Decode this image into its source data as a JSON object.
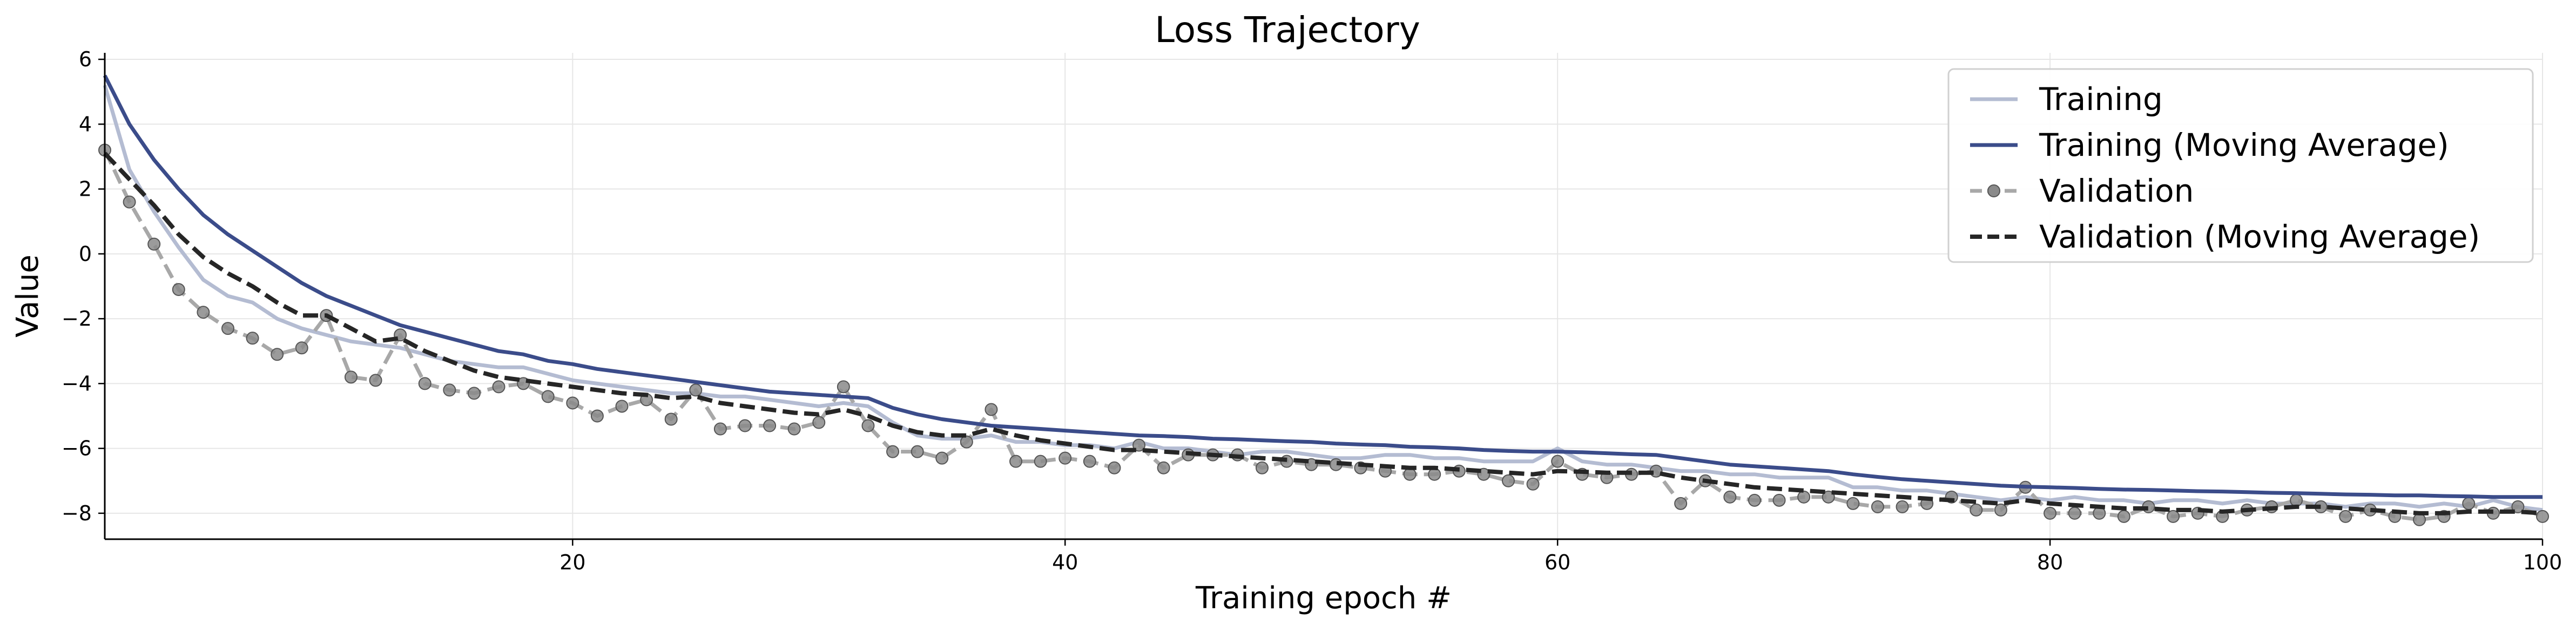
{
  "chart_data": {
    "type": "line",
    "title": "Loss Trajectory",
    "xlabel": "Training epoch #",
    "ylabel": "Value",
    "xlim": [
      1,
      100
    ],
    "ylim": [
      -8.8,
      6.2
    ],
    "xticks": [
      20,
      40,
      60,
      80,
      100
    ],
    "yticks": [
      -8,
      -6,
      -4,
      -2,
      0,
      2,
      4,
      6
    ],
    "grid": true,
    "legend_position": "top-right",
    "series": [
      {
        "name": "Training",
        "color": "#b4bcd2",
        "style": "solid",
        "x_start": 1,
        "values": [
          5.2,
          2.6,
          1.3,
          0.2,
          -0.8,
          -1.3,
          -1.5,
          -2.0,
          -2.3,
          -2.5,
          -2.7,
          -2.8,
          -2.9,
          -3.1,
          -3.3,
          -3.4,
          -3.5,
          -3.5,
          -3.7,
          -3.9,
          -4.0,
          -4.1,
          -4.2,
          -4.3,
          -4.3,
          -4.4,
          -4.4,
          -4.5,
          -4.6,
          -4.7,
          -4.6,
          -4.7,
          -5.2,
          -5.6,
          -5.7,
          -5.7,
          -5.6,
          -5.8,
          -5.8,
          -5.9,
          -5.9,
          -6.0,
          -5.8,
          -6.0,
          -6.0,
          -6.1,
          -6.2,
          -6.1,
          -6.1,
          -6.2,
          -6.3,
          -6.3,
          -6.2,
          -6.2,
          -6.3,
          -6.3,
          -6.4,
          -6.4,
          -6.4,
          -6.0,
          -6.4,
          -6.5,
          -6.5,
          -6.6,
          -6.7,
          -6.7,
          -6.8,
          -6.8,
          -6.9,
          -6.9,
          -6.9,
          -7.2,
          -7.2,
          -7.3,
          -7.3,
          -7.4,
          -7.5,
          -7.6,
          -7.5,
          -7.6,
          -7.5,
          -7.6,
          -7.6,
          -7.7,
          -7.6,
          -7.6,
          -7.7,
          -7.6,
          -7.7,
          -7.7,
          -7.7,
          -7.8,
          -7.7,
          -7.7,
          -7.8,
          -7.7,
          -7.8,
          -7.6,
          -7.8,
          -7.9
        ]
      },
      {
        "name": "Training (Moving Average)",
        "color": "#3b4c8a",
        "style": "solid",
        "x_start": 1,
        "values": [
          5.5,
          4.0,
          2.9,
          2.0,
          1.2,
          0.6,
          0.1,
          -0.4,
          -0.9,
          -1.3,
          -1.6,
          -1.9,
          -2.2,
          -2.4,
          -2.6,
          -2.8,
          -3.0,
          -3.1,
          -3.3,
          -3.4,
          -3.55,
          -3.65,
          -3.75,
          -3.85,
          -3.95,
          -4.05,
          -4.15,
          -4.25,
          -4.3,
          -4.35,
          -4.4,
          -4.45,
          -4.75,
          -4.95,
          -5.1,
          -5.2,
          -5.3,
          -5.35,
          -5.4,
          -5.45,
          -5.5,
          -5.55,
          -5.6,
          -5.62,
          -5.65,
          -5.7,
          -5.72,
          -5.75,
          -5.78,
          -5.8,
          -5.85,
          -5.88,
          -5.9,
          -5.95,
          -5.97,
          -6.0,
          -6.05,
          -6.08,
          -6.1,
          -6.1,
          -6.12,
          -6.15,
          -6.18,
          -6.2,
          -6.3,
          -6.4,
          -6.5,
          -6.55,
          -6.6,
          -6.65,
          -6.7,
          -6.8,
          -6.88,
          -6.95,
          -7.0,
          -7.05,
          -7.1,
          -7.15,
          -7.18,
          -7.2,
          -7.22,
          -7.25,
          -7.27,
          -7.28,
          -7.3,
          -7.32,
          -7.33,
          -7.35,
          -7.37,
          -7.38,
          -7.4,
          -7.42,
          -7.43,
          -7.45,
          -7.45,
          -7.47,
          -7.48,
          -7.5,
          -7.5,
          -7.5
        ]
      },
      {
        "name": "Validation",
        "color": "#a8a8a8",
        "marker_color": "#8a8a8a",
        "style": "dashed-markers",
        "x_start": 1,
        "values": [
          3.2,
          1.6,
          0.3,
          -1.1,
          -1.8,
          -2.3,
          -2.6,
          -3.1,
          -2.9,
          -1.9,
          -3.8,
          -3.9,
          -2.5,
          -4.0,
          -4.2,
          -4.3,
          -4.1,
          -4.0,
          -4.4,
          -4.6,
          -5.0,
          -4.7,
          -4.5,
          -5.1,
          -4.2,
          -5.4,
          -5.3,
          -5.3,
          -5.4,
          -5.2,
          -4.1,
          -5.3,
          -6.1,
          -6.1,
          -6.3,
          -5.8,
          -4.8,
          -6.4,
          -6.4,
          -6.3,
          -6.4,
          -6.6,
          -5.9,
          -6.6,
          -6.2,
          -6.2,
          -6.2,
          -6.6,
          -6.4,
          -6.5,
          -6.5,
          -6.6,
          -6.7,
          -6.8,
          -6.8,
          -6.7,
          -6.8,
          -7.0,
          -7.1,
          -6.4,
          -6.8,
          -6.9,
          -6.8,
          -6.7,
          -7.7,
          -7.0,
          -7.5,
          -7.6,
          -7.6,
          -7.5,
          -7.5,
          -7.7,
          -7.8,
          -7.8,
          -7.7,
          -7.5,
          -7.9,
          -7.9,
          -7.2,
          -8.0,
          -8.0,
          -8.0,
          -8.1,
          -7.8,
          -8.1,
          -8.0,
          -8.1,
          -7.9,
          -7.8,
          -7.6,
          -7.8,
          -8.1,
          -7.9,
          -8.1,
          -8.2,
          -8.1,
          -7.7,
          -8.0,
          -7.8,
          -8.1
        ]
      },
      {
        "name": "Validation (Moving Average)",
        "color": "#262626",
        "style": "dashed",
        "x_start": 1,
        "values": [
          3.1,
          2.3,
          1.5,
          0.6,
          -0.1,
          -0.6,
          -1.0,
          -1.5,
          -1.9,
          -1.9,
          -2.3,
          -2.7,
          -2.6,
          -3.0,
          -3.3,
          -3.6,
          -3.8,
          -3.9,
          -4.0,
          -4.1,
          -4.2,
          -4.3,
          -4.35,
          -4.45,
          -4.4,
          -4.6,
          -4.7,
          -4.8,
          -4.9,
          -4.95,
          -4.8,
          -5.0,
          -5.3,
          -5.5,
          -5.6,
          -5.6,
          -5.4,
          -5.6,
          -5.75,
          -5.85,
          -5.95,
          -6.05,
          -6.05,
          -6.1,
          -6.15,
          -6.2,
          -6.25,
          -6.3,
          -6.35,
          -6.4,
          -6.45,
          -6.5,
          -6.55,
          -6.6,
          -6.6,
          -6.65,
          -6.7,
          -6.75,
          -6.8,
          -6.7,
          -6.72,
          -6.75,
          -6.75,
          -6.75,
          -6.9,
          -7.0,
          -7.1,
          -7.2,
          -7.25,
          -7.3,
          -7.35,
          -7.4,
          -7.45,
          -7.5,
          -7.55,
          -7.6,
          -7.65,
          -7.7,
          -7.6,
          -7.7,
          -7.75,
          -7.8,
          -7.85,
          -7.85,
          -7.9,
          -7.9,
          -7.95,
          -7.9,
          -7.85,
          -7.8,
          -7.8,
          -7.85,
          -7.9,
          -7.95,
          -8.0,
          -8.0,
          -7.95,
          -7.95,
          -7.95,
          -8.0
        ]
      }
    ]
  }
}
